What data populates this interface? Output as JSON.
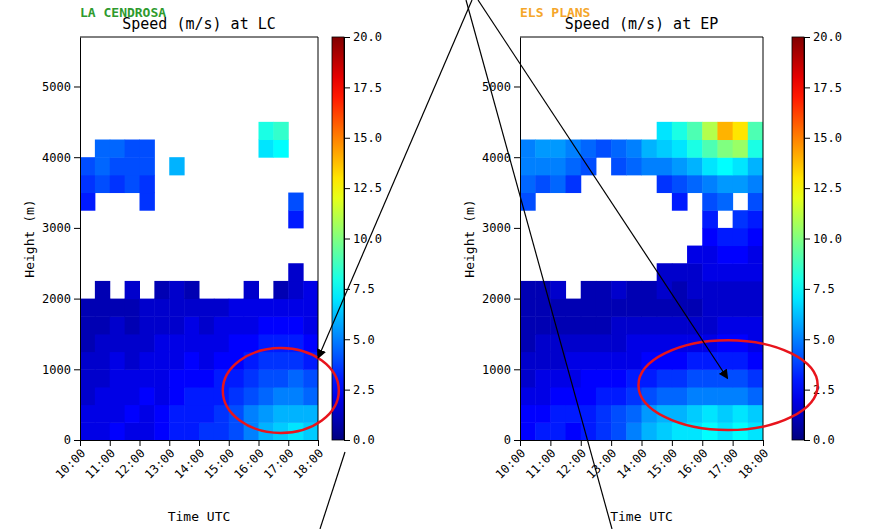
{
  "chart_data": [
    {
      "type": "heatmap",
      "label": "LA CENDROSA",
      "color": "#2e9a2e",
      "title": "Speed (m/s) at LC",
      "xlabel": "Time UTC",
      "ylabel": "Height (m)",
      "xlim": [
        10,
        18
      ],
      "ylim": [
        0,
        5700
      ],
      "xticks": [
        {
          "value": 10,
          "label": "10:00"
        },
        {
          "value": 11,
          "label": "11:00"
        },
        {
          "value": 12,
          "label": "12:00"
        },
        {
          "value": 13,
          "label": "13:00"
        },
        {
          "value": 14,
          "label": "14:00"
        },
        {
          "value": 15,
          "label": "15:00"
        },
        {
          "value": 16,
          "label": "16:00"
        },
        {
          "value": 17,
          "label": "17:00"
        },
        {
          "value": 18,
          "label": "18:00"
        }
      ],
      "yticks": [
        0,
        1000,
        2000,
        3000,
        4000,
        5000
      ],
      "x": [
        10,
        10.5,
        11,
        11.5,
        12,
        12.5,
        13,
        13.5,
        14,
        14.5,
        15,
        15.5,
        16,
        16.5,
        17,
        17.5,
        18
      ],
      "y": [
        0,
        250,
        500,
        750,
        1000,
        1250,
        1500,
        1750,
        2000,
        2250,
        2500,
        2750,
        3000,
        3250,
        3500,
        3750,
        4000,
        4250,
        4500
      ],
      "z": [
        [
          2,
          2,
          2.5,
          2,
          2,
          2.5,
          3,
          3,
          3.5,
          3.5,
          4,
          5,
          6,
          6.5,
          7,
          6.5
        ],
        [
          2,
          2,
          2,
          2.5,
          2,
          2.5,
          3,
          3,
          3,
          3.5,
          4,
          5,
          5.5,
          6,
          6,
          6
        ],
        [
          1.5,
          2,
          2,
          2,
          2.5,
          2,
          2.5,
          3,
          3,
          3,
          3.5,
          4,
          4.5,
          5,
          5,
          4.5
        ],
        [
          1.5,
          1.5,
          2,
          2,
          2,
          2,
          2.5,
          2.5,
          2.5,
          3,
          3,
          3.5,
          4,
          4,
          4.5,
          4
        ],
        [
          1.5,
          1.5,
          2,
          1.5,
          2,
          2,
          2,
          2.5,
          2,
          2.5,
          2.5,
          3,
          3.5,
          3.5,
          3.5,
          3
        ],
        [
          1,
          1.5,
          1.5,
          1.5,
          1.5,
          2,
          2,
          2,
          2,
          2,
          2.5,
          2.5,
          3,
          3,
          3,
          2.5
        ],
        [
          1,
          1,
          1.5,
          1,
          1.5,
          1.5,
          1.5,
          2,
          1.5,
          2,
          2,
          2,
          2.5,
          2.5,
          2.5,
          2
        ],
        [
          1,
          1,
          1,
          1,
          1.5,
          1.5,
          1.5,
          1.5,
          1.5,
          1.5,
          2,
          2,
          2,
          2,
          2,
          2
        ],
        [
          null,
          1,
          null,
          1.5,
          null,
          1,
          1.5,
          1,
          null,
          null,
          null,
          1.5,
          null,
          1,
          1.5,
          2
        ],
        [
          null,
          null,
          null,
          null,
          null,
          null,
          null,
          null,
          null,
          null,
          null,
          null,
          null,
          null,
          1.5,
          null
        ],
        [
          null,
          null,
          null,
          null,
          null,
          null,
          null,
          null,
          null,
          null,
          null,
          null,
          null,
          null,
          null,
          null
        ],
        [
          null,
          null,
          null,
          null,
          null,
          null,
          null,
          null,
          null,
          null,
          null,
          null,
          null,
          null,
          null,
          null
        ],
        [
          null,
          null,
          null,
          null,
          null,
          null,
          null,
          null,
          null,
          null,
          null,
          null,
          null,
          null,
          3,
          null
        ],
        [
          3,
          null,
          null,
          null,
          3.5,
          null,
          null,
          null,
          null,
          null,
          null,
          null,
          null,
          null,
          4,
          null
        ],
        [
          3.5,
          4,
          3.5,
          4,
          3.5,
          null,
          null,
          null,
          null,
          null,
          null,
          null,
          null,
          null,
          null,
          null
        ],
        [
          4,
          4.5,
          4,
          4,
          4,
          null,
          6,
          null,
          null,
          null,
          null,
          null,
          null,
          null,
          null,
          null
        ],
        [
          null,
          4.5,
          4.5,
          4,
          4,
          null,
          null,
          null,
          null,
          null,
          null,
          null,
          7,
          7.5,
          null,
          null
        ],
        [
          null,
          null,
          null,
          null,
          null,
          null,
          null,
          null,
          null,
          null,
          null,
          null,
          8,
          8.5,
          null,
          null
        ]
      ],
      "colorbar": {
        "range": [
          0,
          20
        ],
        "ticks": [
          {
            "value": 0,
            "label": "0.0"
          },
          {
            "value": 2.5,
            "label": "2.5"
          },
          {
            "value": 5,
            "label": "5.0"
          },
          {
            "value": 7.5,
            "label": "7.5"
          },
          {
            "value": 10,
            "label": "10.0"
          },
          {
            "value": 12.5,
            "label": "12.5"
          },
          {
            "value": 15,
            "label": "15.0"
          },
          {
            "value": 17.5,
            "label": "17.5"
          },
          {
            "value": 20,
            "label": "20.0"
          }
        ]
      },
      "highlight": {
        "x": [
          14.8,
          18.7
        ],
        "y": [
          100,
          1300
        ]
      }
    },
    {
      "type": "heatmap",
      "label": "ELS PLANS",
      "color": "#f5a62a",
      "title": "Speed (m/s) at EP",
      "xlabel": "Time UTC",
      "ylabel": "Height (m)",
      "xlim": [
        10,
        18
      ],
      "ylim": [
        0,
        5700
      ],
      "xticks": [
        {
          "value": 10,
          "label": "10:00"
        },
        {
          "value": 11,
          "label": "11:00"
        },
        {
          "value": 12,
          "label": "12:00"
        },
        {
          "value": 13,
          "label": "13:00"
        },
        {
          "value": 14,
          "label": "14:00"
        },
        {
          "value": 15,
          "label": "15:00"
        },
        {
          "value": 16,
          "label": "16:00"
        },
        {
          "value": 17,
          "label": "17:00"
        },
        {
          "value": 18,
          "label": "18:00"
        }
      ],
      "yticks": [
        0,
        1000,
        2000,
        3000,
        4000,
        5000
      ],
      "x": [
        10,
        10.5,
        11,
        11.5,
        12,
        12.5,
        13,
        13.5,
        14,
        14.5,
        15,
        15.5,
        16,
        16.5,
        17,
        17.5,
        18
      ],
      "y": [
        0,
        250,
        500,
        750,
        1000,
        1250,
        1500,
        1750,
        2000,
        2250,
        2500,
        2750,
        3000,
        3250,
        3500,
        3750,
        4000,
        4250,
        4500
      ],
      "z": [
        [
          2.5,
          3,
          3,
          2.5,
          3,
          3.5,
          4,
          5,
          6,
          6.5,
          7,
          7,
          7.5,
          7,
          7.5,
          7
        ],
        [
          2.5,
          2.5,
          3,
          3,
          3,
          3.5,
          4,
          4.5,
          5.5,
          6,
          6,
          6.5,
          7,
          6.5,
          7,
          6.5
        ],
        [
          2,
          2,
          2.5,
          2.5,
          2.5,
          3,
          3,
          3.5,
          4,
          4.5,
          4.5,
          5,
          5,
          5,
          5,
          4.5
        ],
        [
          1.5,
          2,
          2,
          2,
          2.5,
          2.5,
          2.5,
          3,
          3,
          3.5,
          3.5,
          4,
          4,
          4,
          4,
          3.5
        ],
        [
          1.5,
          1.5,
          1.5,
          2,
          2,
          2,
          2,
          2,
          2.5,
          2.5,
          2.5,
          3,
          3,
          3,
          3,
          2.5
        ],
        [
          1,
          1.5,
          1.5,
          1.5,
          1.5,
          1.5,
          1.5,
          2,
          2,
          2,
          2,
          2,
          2,
          2.5,
          2.5,
          2
        ],
        [
          1,
          1,
          1,
          1,
          1,
          1,
          1.5,
          1.5,
          1.5,
          1.5,
          1.5,
          1.5,
          1.5,
          2,
          2,
          2
        ],
        [
          1,
          1,
          1,
          1,
          1,
          1,
          1,
          1,
          1,
          1,
          1,
          1,
          1.5,
          1.5,
          1.5,
          1.5
        ],
        [
          1,
          1,
          1.5,
          null,
          1,
          1,
          1.5,
          1,
          1,
          1.5,
          1,
          1.5,
          1.5,
          1.5,
          1.5,
          1.5
        ],
        [
          null,
          null,
          null,
          null,
          null,
          null,
          null,
          null,
          null,
          1.5,
          1.5,
          1.5,
          2,
          2,
          2,
          2
        ],
        [
          null,
          null,
          null,
          null,
          null,
          null,
          null,
          null,
          null,
          null,
          null,
          2,
          2,
          2.5,
          2.5,
          2
        ],
        [
          null,
          null,
          null,
          null,
          null,
          null,
          null,
          null,
          null,
          null,
          null,
          null,
          2.5,
          3,
          3,
          2.5
        ],
        [
          null,
          null,
          null,
          null,
          null,
          null,
          null,
          null,
          null,
          null,
          null,
          null,
          3,
          null,
          3.5,
          3
        ],
        [
          4,
          null,
          null,
          null,
          null,
          null,
          null,
          null,
          null,
          null,
          3,
          null,
          4,
          4.5,
          null,
          4
        ],
        [
          4.5,
          4,
          4.5,
          3.5,
          null,
          null,
          null,
          null,
          null,
          3.5,
          4,
          4.5,
          5,
          5.5,
          5.5,
          5
        ],
        [
          5,
          5,
          5,
          4.5,
          4,
          null,
          4,
          4.5,
          5,
          5,
          5.5,
          6,
          7,
          7.5,
          7,
          6
        ],
        [
          5,
          5.5,
          5.5,
          5,
          4.5,
          4,
          4.5,
          5,
          6,
          6.5,
          7,
          8,
          9,
          10,
          10.5,
          8
        ],
        [
          null,
          null,
          null,
          null,
          null,
          null,
          null,
          null,
          null,
          7,
          8,
          9,
          11,
          14,
          13,
          9
        ]
      ],
      "colorbar": {
        "range": [
          0,
          20
        ],
        "ticks": [
          {
            "value": 0,
            "label": "0.0"
          },
          {
            "value": 2.5,
            "label": "2.5"
          },
          {
            "value": 5,
            "label": "5.0"
          },
          {
            "value": 7.5,
            "label": "7.5"
          },
          {
            "value": 10,
            "label": "10.0"
          },
          {
            "value": 12.5,
            "label": "12.5"
          },
          {
            "value": 15,
            "label": "15.0"
          },
          {
            "value": 17.5,
            "label": "17.5"
          },
          {
            "value": 20,
            "label": "20.0"
          }
        ]
      },
      "highlight": {
        "x": [
          13.9,
          19.8
        ],
        "y": [
          140,
          1410
        ]
      }
    }
  ]
}
